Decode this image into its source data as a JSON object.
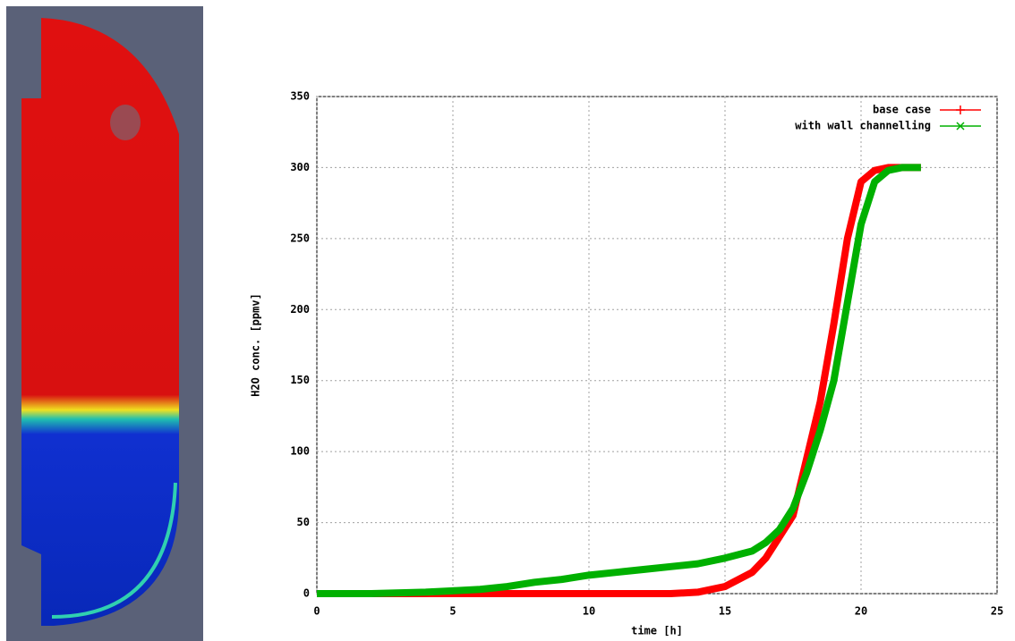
{
  "chart_data": {
    "type": "line",
    "xlabel": "time [h]",
    "ylabel": "H2O conc. [ppmv]",
    "x": [
      0,
      2,
      4,
      5,
      6,
      7,
      8,
      9,
      10,
      11,
      12,
      13,
      14,
      15,
      16,
      16.5,
      17,
      17.5,
      18,
      18.5,
      19,
      19.5,
      20,
      20.5,
      21,
      21.5,
      22,
      22.2
    ],
    "series": [
      {
        "name": "base case",
        "color": "#ff0000",
        "marker": "+",
        "values": [
          0,
          0,
          0,
          0,
          0,
          0,
          0,
          0,
          0,
          0,
          0,
          0,
          1,
          5,
          15,
          25,
          40,
          55,
          95,
          135,
          190,
          250,
          290,
          298,
          300,
          300,
          300,
          300
        ]
      },
      {
        "name": "with wall channelling",
        "color": "#00b000",
        "marker": "x",
        "values": [
          0,
          0,
          1,
          2,
          3,
          5,
          8,
          10,
          13,
          15,
          17,
          19,
          21,
          25,
          30,
          36,
          45,
          60,
          85,
          115,
          150,
          205,
          260,
          290,
          298,
          300,
          300,
          300
        ]
      }
    ],
    "xlim": [
      0,
      25
    ],
    "xticks": [
      0,
      5,
      10,
      15,
      20,
      25
    ],
    "ylim": [
      0,
      350
    ],
    "yticks": [
      0,
      50,
      100,
      150,
      200,
      250,
      300,
      350
    ],
    "grid": true,
    "legend": "upper right"
  }
}
